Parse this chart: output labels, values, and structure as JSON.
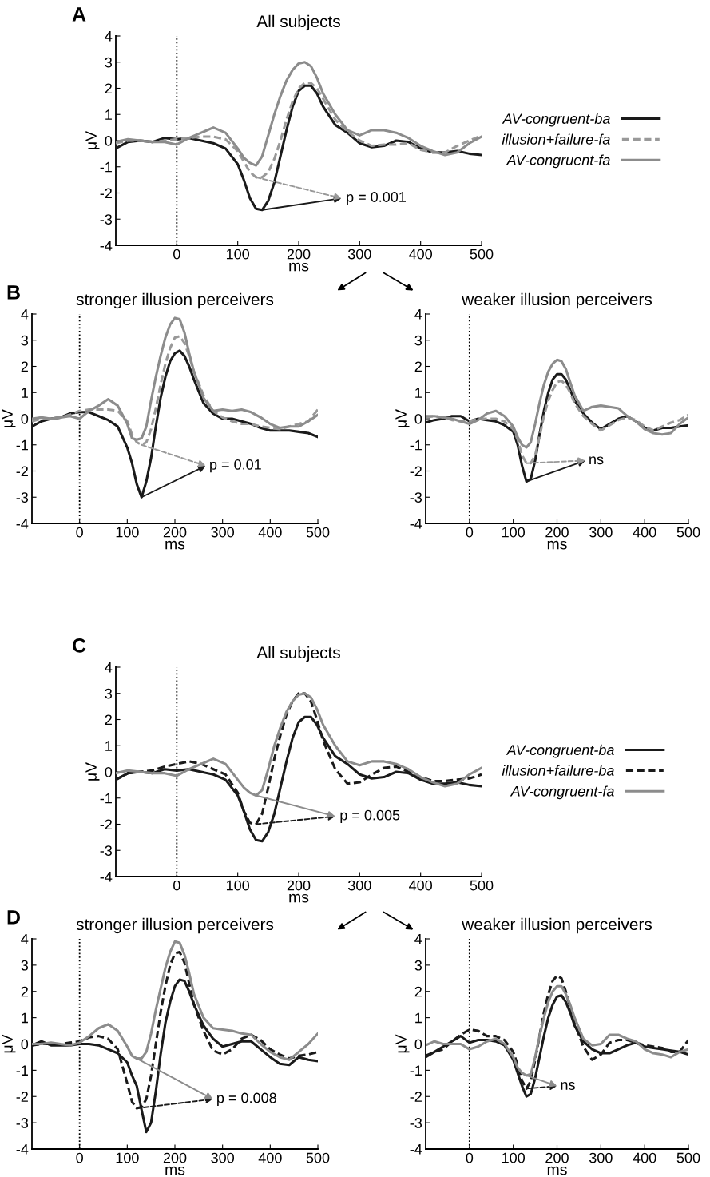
{
  "chart_data": [
    {
      "type": "line",
      "title": "All subjects",
      "xlabel": "ms",
      "ylabel": "μV",
      "xlim": [
        -100,
        500
      ],
      "ylim": [
        -4,
        4
      ],
      "xticks": [
        0,
        100,
        200,
        300,
        400,
        500
      ],
      "yticks": [
        -4,
        -3,
        -2,
        -1,
        0,
        1,
        2,
        3,
        4
      ],
      "legend": "right",
      "grid": false,
      "annotations": [
        "A",
        {
          "text": "p = 0.001",
          "x": 140,
          "y": -2.65
        }
      ],
      "ref_lines": [
        {
          "axis": "x",
          "value": 0,
          "label": null,
          "color": "#000000",
          "line_style": "dotted"
        }
      ],
      "x": [
        -100,
        -80,
        -60,
        -40,
        -20,
        0,
        20,
        40,
        60,
        80,
        100,
        110,
        120,
        130,
        140,
        150,
        160,
        170,
        180,
        190,
        200,
        210,
        220,
        230,
        240,
        260,
        280,
        300,
        320,
        340,
        360,
        380,
        400,
        420,
        440,
        460,
        480,
        500
      ],
      "series": [
        {
          "name": "AV-congruent-ba",
          "color": "#1a1a1a",
          "line_style": "solid",
          "values": [
            -0.3,
            -0.05,
            0,
            -0.05,
            0.1,
            0.05,
            0.1,
            0,
            -0.1,
            -0.3,
            -0.9,
            -1.5,
            -2.2,
            -2.6,
            -2.65,
            -2.3,
            -1.6,
            -0.6,
            0.4,
            1.3,
            1.9,
            2.1,
            2.1,
            1.8,
            1.3,
            0.6,
            0.3,
            -0.1,
            -0.25,
            -0.2,
            0,
            -0.05,
            -0.3,
            -0.45,
            -0.45,
            -0.4,
            -0.5,
            -0.55
          ]
        },
        {
          "name": "illusion+failure-fa",
          "color": "#999999",
          "line_style": "dashed",
          "values": [
            -0.1,
            0,
            0,
            -0.05,
            0,
            0.05,
            0.1,
            0.15,
            0.15,
            0.05,
            -0.4,
            -0.8,
            -1.2,
            -1.4,
            -1.4,
            -1.2,
            -0.7,
            0,
            0.8,
            1.5,
            2.0,
            2.2,
            2.2,
            2.0,
            1.6,
            0.8,
            0.35,
            0,
            -0.2,
            -0.15,
            -0.15,
            -0.1,
            -0.35,
            -0.45,
            -0.45,
            -0.2,
            0,
            0.2
          ]
        },
        {
          "name": "AV-congruent-fa",
          "color": "#8c8c8c",
          "line_style": "solid",
          "values": [
            -0.05,
            0.05,
            0,
            -0.05,
            -0.05,
            -0.15,
            0.1,
            0.3,
            0.5,
            0.3,
            -0.3,
            -0.65,
            -0.85,
            -0.95,
            -0.6,
            0.2,
            1.0,
            1.7,
            2.3,
            2.7,
            2.95,
            3.0,
            2.85,
            2.4,
            1.8,
            1.0,
            0.4,
            0.2,
            0.4,
            0.4,
            0.3,
            0.1,
            -0.2,
            -0.4,
            -0.55,
            -0.45,
            -0.1,
            0.15
          ]
        }
      ]
    },
    {
      "type": "line",
      "title": "stronger illusion perceivers",
      "xlabel": "ms",
      "ylabel": "μV",
      "xlim": [
        -100,
        500
      ],
      "ylim": [
        -4,
        4
      ],
      "xticks": [
        0,
        100,
        200,
        300,
        400,
        500
      ],
      "yticks": [
        -4,
        -3,
        -2,
        -1,
        0,
        1,
        2,
        3,
        4
      ],
      "grid": false,
      "annotations": [
        "B",
        {
          "text": "p = 0.01",
          "x": 130,
          "y": -3.0
        }
      ],
      "ref_lines": [
        {
          "axis": "x",
          "value": 0,
          "label": null,
          "color": "#000000",
          "line_style": "dotted"
        }
      ],
      "x": [
        -100,
        -80,
        -60,
        -40,
        -20,
        0,
        20,
        40,
        60,
        80,
        100,
        110,
        120,
        130,
        140,
        150,
        160,
        170,
        180,
        190,
        200,
        210,
        220,
        230,
        240,
        260,
        280,
        300,
        320,
        340,
        360,
        380,
        400,
        420,
        440,
        460,
        480,
        500
      ],
      "series": [
        {
          "color": "#1a1a1a",
          "line_style": "solid",
          "values": [
            -0.3,
            -0.1,
            0,
            0.05,
            0.2,
            0.25,
            0.25,
            0.1,
            -0.05,
            -0.3,
            -1.1,
            -1.7,
            -2.5,
            -3.0,
            -2.4,
            -1.5,
            -0.3,
            0.8,
            1.6,
            2.2,
            2.5,
            2.6,
            2.4,
            2.0,
            1.5,
            0.6,
            0.2,
            0,
            0,
            -0.1,
            -0.2,
            -0.35,
            -0.45,
            -0.45,
            -0.45,
            -0.5,
            -0.55,
            -0.7
          ]
        },
        {
          "color": "#999999",
          "line_style": "dashed",
          "values": [
            -0.1,
            0,
            0,
            0.05,
            0.15,
            0.3,
            0.35,
            0.35,
            0.35,
            0.3,
            -0.1,
            -0.6,
            -0.9,
            -1.0,
            -0.9,
            -0.4,
            0.4,
            1.3,
            2.1,
            2.7,
            3.1,
            3.15,
            2.9,
            2.4,
            1.8,
            0.9,
            0.3,
            0.05,
            -0.1,
            -0.2,
            -0.2,
            -0.3,
            -0.35,
            -0.4,
            -0.3,
            -0.2,
            -0.1,
            0.35
          ]
        },
        {
          "color": "#8c8c8c",
          "line_style": "solid",
          "values": [
            0,
            0.05,
            0,
            0.05,
            0.1,
            0,
            0.3,
            0.5,
            0.75,
            0.5,
            -0.2,
            -0.75,
            -0.8,
            -0.75,
            -0.3,
            0.7,
            1.6,
            2.4,
            3.1,
            3.6,
            3.85,
            3.8,
            3.3,
            2.5,
            1.8,
            0.8,
            0.3,
            0.35,
            0.3,
            0.35,
            0.25,
            0.05,
            -0.2,
            -0.35,
            -0.3,
            -0.3,
            -0.1,
            0.15
          ]
        }
      ]
    },
    {
      "type": "line",
      "title": "weaker illusion perceivers",
      "xlabel": "ms",
      "ylabel": "μV",
      "xlim": [
        -100,
        500
      ],
      "ylim": [
        -4,
        4
      ],
      "xticks": [
        0,
        100,
        200,
        300,
        400,
        500
      ],
      "yticks": [
        -4,
        -3,
        -2,
        -1,
        0,
        1,
        2,
        3,
        4
      ],
      "grid": false,
      "annotations": [
        {
          "text": "ns",
          "x": 130,
          "y": -2.4
        }
      ],
      "ref_lines": [
        {
          "axis": "x",
          "value": 0,
          "label": null,
          "color": "#000000",
          "line_style": "dotted"
        }
      ],
      "x": [
        -100,
        -80,
        -60,
        -40,
        -20,
        0,
        20,
        40,
        60,
        80,
        100,
        110,
        120,
        130,
        140,
        150,
        160,
        170,
        180,
        190,
        200,
        210,
        220,
        230,
        240,
        260,
        280,
        300,
        320,
        340,
        360,
        380,
        400,
        420,
        440,
        460,
        480,
        500
      ],
      "series": [
        {
          "color": "#1a1a1a",
          "line_style": "solid",
          "values": [
            -0.15,
            -0.05,
            0,
            0.1,
            0.1,
            -0.1,
            0,
            -0.05,
            -0.1,
            -0.25,
            -0.5,
            -1.0,
            -1.8,
            -2.4,
            -2.3,
            -1.6,
            -0.6,
            0.3,
            1.0,
            1.5,
            1.7,
            1.7,
            1.5,
            1.1,
            0.7,
            0.2,
            -0.15,
            -0.4,
            -0.2,
            0,
            0.1,
            -0.1,
            -0.35,
            -0.45,
            -0.35,
            -0.35,
            -0.3,
            -0.25
          ]
        },
        {
          "color": "#999999",
          "line_style": "dashed",
          "values": [
            0.05,
            0.1,
            0.05,
            -0.05,
            -0.1,
            -0.1,
            0,
            0,
            0,
            -0.1,
            -0.4,
            -0.8,
            -1.4,
            -1.7,
            -1.7,
            -1.4,
            -0.7,
            0.1,
            0.7,
            1.1,
            1.4,
            1.45,
            1.3,
            1.0,
            0.6,
            0.1,
            -0.2,
            -0.45,
            -0.25,
            -0.05,
            0.05,
            -0.05,
            -0.3,
            -0.45,
            -0.3,
            -0.15,
            -0.05,
            0.15
          ]
        },
        {
          "color": "#8c8c8c",
          "line_style": "solid",
          "values": [
            0.1,
            0.1,
            0.05,
            0,
            -0.1,
            -0.2,
            -0.05,
            0.2,
            0.3,
            0.1,
            -0.3,
            -0.7,
            -1.0,
            -1.1,
            -0.9,
            -0.2,
            0.6,
            1.3,
            1.8,
            2.1,
            2.25,
            2.2,
            1.9,
            1.4,
            0.9,
            0.3,
            0.45,
            0.5,
            0.45,
            0.4,
            0.1,
            -0.1,
            -0.4,
            -0.55,
            -0.6,
            -0.55,
            -0.2,
            0.05
          ]
        }
      ]
    },
    {
      "type": "line",
      "title": "All subjects",
      "xlabel": "ms",
      "ylabel": "μV",
      "xlim": [
        -100,
        500
      ],
      "ylim": [
        -4,
        4
      ],
      "xticks": [
        0,
        100,
        200,
        300,
        400,
        500
      ],
      "yticks": [
        -4,
        -3,
        -2,
        -1,
        0,
        1,
        2,
        3,
        4
      ],
      "legend": "right",
      "grid": false,
      "annotations": [
        "C",
        {
          "text": "p = 0.005",
          "x": 130,
          "y": -2.0
        }
      ],
      "ref_lines": [
        {
          "axis": "x",
          "value": 0,
          "label": null,
          "color": "#000000",
          "line_style": "dotted"
        }
      ],
      "x": [
        -100,
        -80,
        -60,
        -40,
        -20,
        0,
        20,
        40,
        60,
        80,
        100,
        110,
        120,
        130,
        140,
        150,
        160,
        170,
        180,
        190,
        200,
        210,
        220,
        230,
        240,
        260,
        280,
        300,
        320,
        340,
        360,
        380,
        400,
        420,
        440,
        460,
        480,
        500
      ],
      "series": [
        {
          "name": "AV-congruent-ba",
          "color": "#1a1a1a",
          "line_style": "solid",
          "values": [
            -0.3,
            -0.05,
            0,
            -0.05,
            0.1,
            0.05,
            0.1,
            0,
            -0.1,
            -0.3,
            -0.9,
            -1.5,
            -2.2,
            -2.6,
            -2.65,
            -2.3,
            -1.6,
            -0.6,
            0.4,
            1.3,
            1.9,
            2.1,
            2.1,
            1.8,
            1.3,
            0.6,
            0.3,
            -0.1,
            -0.25,
            -0.2,
            0,
            -0.05,
            -0.3,
            -0.45,
            -0.45,
            -0.4,
            -0.5,
            -0.55
          ]
        },
        {
          "name": "illusion+failure-ba",
          "color": "#1a1a1a",
          "line_style": "dashed",
          "values": [
            -0.3,
            -0.05,
            0,
            0.05,
            0.2,
            0.3,
            0.4,
            0.3,
            0.1,
            -0.1,
            -0.8,
            -1.5,
            -1.95,
            -2.0,
            -1.6,
            -0.6,
            0.5,
            1.4,
            2.2,
            2.7,
            3.0,
            3.0,
            2.7,
            2.0,
            1.2,
            0.1,
            -0.45,
            -0.4,
            -0.1,
            0.15,
            0.2,
            0,
            -0.2,
            -0.35,
            -0.35,
            -0.3,
            -0.25,
            -0.1
          ]
        },
        {
          "name": "AV-congruent-fa",
          "color": "#8c8c8c",
          "line_style": "solid",
          "values": [
            -0.05,
            0.05,
            0,
            -0.05,
            -0.05,
            -0.15,
            0.1,
            0.3,
            0.5,
            0.3,
            -0.3,
            -0.6,
            -0.8,
            -0.9,
            -0.7,
            0.1,
            1.0,
            1.7,
            2.3,
            2.7,
            2.95,
            3.0,
            2.85,
            2.4,
            1.8,
            1.0,
            0.4,
            0.25,
            0.4,
            0.4,
            0.3,
            0.1,
            -0.2,
            -0.4,
            -0.55,
            -0.45,
            -0.1,
            0.15
          ]
        }
      ]
    },
    {
      "type": "line",
      "title": "stronger illusion perceivers",
      "xlabel": "ms",
      "ylabel": "μV",
      "xlim": [
        -100,
        500
      ],
      "ylim": [
        -4,
        4
      ],
      "xticks": [
        0,
        100,
        200,
        300,
        400,
        500
      ],
      "yticks": [
        -4,
        -3,
        -2,
        -1,
        0,
        1,
        2,
        3,
        4
      ],
      "grid": false,
      "annotations": [
        "D",
        {
          "text": "p = 0.008",
          "x": 120,
          "y": -2.45
        }
      ],
      "ref_lines": [
        {
          "axis": "x",
          "value": 0,
          "label": null,
          "color": "#000000",
          "line_style": "dotted"
        }
      ],
      "x": [
        -100,
        -80,
        -60,
        -40,
        -20,
        0,
        20,
        40,
        60,
        80,
        100,
        110,
        120,
        130,
        140,
        150,
        160,
        170,
        180,
        190,
        200,
        210,
        220,
        230,
        240,
        260,
        280,
        300,
        320,
        340,
        360,
        380,
        400,
        420,
        440,
        460,
        480,
        500
      ],
      "series": [
        {
          "color": "#1a1a1a",
          "line_style": "solid",
          "values": [
            -0.05,
            0.1,
            -0.05,
            -0.05,
            -0.05,
            0,
            0,
            -0.05,
            -0.2,
            -0.35,
            -0.7,
            -1.2,
            -1.6,
            -2.5,
            -3.35,
            -3.0,
            -1.8,
            -0.4,
            0.8,
            1.6,
            2.2,
            2.45,
            2.4,
            2.0,
            1.5,
            0.7,
            0.2,
            -0.1,
            0,
            0.1,
            0.1,
            -0.2,
            -0.5,
            -0.75,
            -0.8,
            -0.5,
            -0.6,
            -0.65
          ]
        },
        {
          "color": "#1a1a1a",
          "line_style": "dashed",
          "values": [
            -0.05,
            0,
            0,
            0,
            0.05,
            0.1,
            0.25,
            0.3,
            0.2,
            -0.2,
            -1.5,
            -2.2,
            -2.45,
            -2.4,
            -2.1,
            -1.2,
            0,
            1.2,
            2.2,
            3.0,
            3.45,
            3.5,
            3.1,
            2.3,
            1.5,
            0.5,
            -0.25,
            -0.4,
            -0.2,
            0.2,
            0.35,
            0.15,
            -0.2,
            -0.4,
            -0.55,
            -0.45,
            -0.4,
            -0.3
          ]
        },
        {
          "color": "#8c8c8c",
          "line_style": "solid",
          "values": [
            0,
            0,
            0.05,
            0,
            -0.05,
            0.05,
            0.3,
            0.6,
            0.75,
            0.5,
            -0.1,
            -0.45,
            -0.55,
            -0.55,
            -0.3,
            0.4,
            1.3,
            2.1,
            2.9,
            3.5,
            3.9,
            3.85,
            3.4,
            2.7,
            1.9,
            1.0,
            0.6,
            0.55,
            0.5,
            0.4,
            0.35,
            0,
            -0.3,
            -0.5,
            -0.6,
            -0.3,
            0,
            0.4
          ]
        }
      ]
    },
    {
      "type": "line",
      "title": "weaker illusion perceivers",
      "xlabel": "ms",
      "ylabel": "μV",
      "xlim": [
        -100,
        500
      ],
      "ylim": [
        -4,
        4
      ],
      "xticks": [
        0,
        100,
        200,
        300,
        400,
        500
      ],
      "yticks": [
        -4,
        -3,
        -2,
        -1,
        0,
        1,
        2,
        3,
        4
      ],
      "grid": false,
      "annotations": [
        {
          "text": "ns",
          "x": 130,
          "y": -1.7
        }
      ],
      "ref_lines": [
        {
          "axis": "x",
          "value": 0,
          "label": null,
          "color": "#000000",
          "line_style": "dotted"
        }
      ],
      "x": [
        -100,
        -80,
        -60,
        -40,
        -20,
        0,
        20,
        40,
        60,
        80,
        100,
        110,
        120,
        130,
        140,
        150,
        160,
        170,
        180,
        190,
        200,
        210,
        220,
        230,
        240,
        260,
        280,
        300,
        320,
        340,
        360,
        380,
        400,
        420,
        440,
        460,
        480,
        500
      ],
      "series": [
        {
          "color": "#1a1a1a",
          "line_style": "solid",
          "values": [
            -0.5,
            -0.3,
            -0.1,
            0.1,
            0.3,
            0.05,
            0.15,
            0.15,
            0.1,
            -0.05,
            -0.6,
            -1.1,
            -1.6,
            -2.0,
            -1.9,
            -1.3,
            -0.5,
            0.3,
            1.0,
            1.5,
            1.8,
            1.85,
            1.6,
            1.2,
            0.7,
            0.1,
            -0.2,
            -0.35,
            -0.35,
            -0.2,
            -0.05,
            0.05,
            -0.1,
            -0.15,
            -0.2,
            -0.25,
            -0.3,
            -0.4
          ]
        },
        {
          "color": "#1a1a1a",
          "line_style": "dashed",
          "values": [
            -0.45,
            -0.3,
            -0.2,
            0.1,
            0.35,
            0.55,
            0.5,
            0.3,
            0.3,
            0.15,
            -0.3,
            -0.8,
            -1.4,
            -1.7,
            -1.4,
            -0.6,
            0.3,
            1.2,
            1.9,
            2.4,
            2.6,
            2.5,
            2.0,
            1.4,
            0.8,
            -0.1,
            -0.6,
            -0.4,
            0.05,
            0.15,
            0.15,
            0.05,
            -0.05,
            -0.1,
            -0.15,
            -0.3,
            -0.3,
            0.15
          ]
        },
        {
          "color": "#8c8c8c",
          "line_style": "solid",
          "values": [
            -0.05,
            0.1,
            0,
            0,
            0,
            -0.2,
            -0.1,
            0.1,
            0.2,
            0,
            -0.5,
            -0.9,
            -1.1,
            -1.2,
            -1.15,
            -0.5,
            0.3,
            1.0,
            1.6,
            2.0,
            2.2,
            2.2,
            1.9,
            1.5,
            1.0,
            0.2,
            -0.05,
            0,
            0.35,
            0.35,
            0.2,
            0.1,
            -0.2,
            -0.35,
            -0.4,
            -0.5,
            -0.3,
            -0.2
          ]
        }
      ]
    }
  ]
}
